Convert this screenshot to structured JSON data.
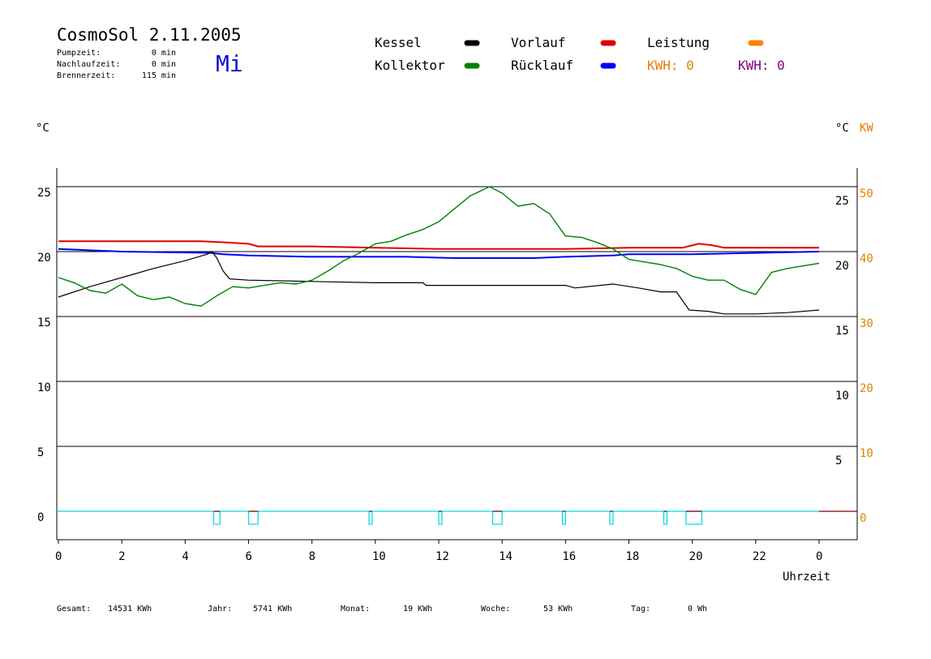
{
  "header": {
    "title": "CosmoSol 2.11.2005",
    "day": "Mi",
    "stats": [
      {
        "label": "Pumpzeit:",
        "value": "0 min"
      },
      {
        "label": "Nachlaufzeit:",
        "value": "0 min"
      },
      {
        "label": "Brennerzeit:",
        "value": "115 min"
      }
    ]
  },
  "legend": {
    "items": [
      {
        "label": "Kessel",
        "color": "#000000"
      },
      {
        "label": "Vorlauf",
        "color": "#e00000"
      },
      {
        "label": "Leistung",
        "color": "#ff8000"
      },
      {
        "label": "Kollektor",
        "color": "#008000"
      },
      {
        "label": "Rücklauf",
        "color": "#0000ff"
      }
    ],
    "kwh_orange": "KWH: 0",
    "kwh_purple": "KWH: 0",
    "kwh_orange_color": "#e08000",
    "kwh_purple_color": "#800080"
  },
  "axes": {
    "left_unit": "°C",
    "right_unit": "°C",
    "right_unit2": "KW",
    "xlabel": "Uhrzeit"
  },
  "footer": [
    {
      "label": "Gesamt:",
      "value": "14531 KWh"
    },
    {
      "label": "Jahr:",
      "value": "5741 KWh"
    },
    {
      "label": "Monat:",
      "value": "19 KWh"
    },
    {
      "label": "Woche:",
      "value": "53 KWh"
    },
    {
      "label": "Tag:",
      "value": "0 Wh"
    }
  ],
  "chart_data": {
    "type": "line",
    "title": "CosmoSol 2.11.2005",
    "xlabel": "Uhrzeit",
    "ylabel": "°C",
    "xlim": [
      0,
      24
    ],
    "ylim": [
      -2,
      26
    ],
    "grid": true,
    "x_ticks": [
      "0",
      "2",
      "4",
      "6",
      "8",
      "10",
      "12",
      "14",
      "16",
      "18",
      "20",
      "22",
      "0"
    ],
    "y_ticks_left": [
      "0",
      "5",
      "10",
      "15",
      "20",
      "25"
    ],
    "y_ticks_right_c": [
      "5",
      "10",
      "15",
      "20",
      "25"
    ],
    "y_ticks_right_kw": [
      "0",
      "10",
      "20",
      "30",
      "40",
      "50"
    ],
    "secondary_axis": {
      "label": "KW",
      "range": [
        0,
        50
      ]
    },
    "series": [
      {
        "name": "Vorlauf",
        "color": "#e00000",
        "points": [
          [
            0,
            20.8
          ],
          [
            4.5,
            20.8
          ],
          [
            5.3,
            20.7
          ],
          [
            6,
            20.6
          ],
          [
            6.3,
            20.4
          ],
          [
            8,
            20.4
          ],
          [
            10,
            20.3
          ],
          [
            12,
            20.2
          ],
          [
            14,
            20.2
          ],
          [
            16,
            20.2
          ],
          [
            18,
            20.3
          ],
          [
            19.7,
            20.3
          ],
          [
            20.2,
            20.6
          ],
          [
            20.6,
            20.5
          ],
          [
            21,
            20.3
          ],
          [
            24,
            20.3
          ]
        ]
      },
      {
        "name": "Rücklauf",
        "color": "#0000ff",
        "points": [
          [
            0,
            20.2
          ],
          [
            1,
            20.1
          ],
          [
            2,
            20.0
          ],
          [
            4.8,
            19.9
          ],
          [
            5.2,
            19.8
          ],
          [
            6,
            19.7
          ],
          [
            8,
            19.6
          ],
          [
            10,
            19.6
          ],
          [
            11,
            19.6
          ],
          [
            12.5,
            19.5
          ],
          [
            14,
            19.5
          ],
          [
            15,
            19.5
          ],
          [
            16,
            19.6
          ],
          [
            17.5,
            19.7
          ],
          [
            18,
            19.8
          ],
          [
            20,
            19.8
          ],
          [
            22,
            19.9
          ],
          [
            24,
            20.0
          ]
        ]
      },
      {
        "name": "Kessel",
        "color": "#000000",
        "points": [
          [
            0,
            16.5
          ],
          [
            1,
            17.3
          ],
          [
            2,
            18.0
          ],
          [
            3,
            18.7
          ],
          [
            4,
            19.3
          ],
          [
            4.7,
            19.8
          ],
          [
            4.85,
            20.0
          ],
          [
            5,
            19.5
          ],
          [
            5.2,
            18.5
          ],
          [
            5.4,
            17.9
          ],
          [
            6,
            17.8
          ],
          [
            8,
            17.7
          ],
          [
            10,
            17.6
          ],
          [
            11.5,
            17.6
          ],
          [
            11.6,
            17.4
          ],
          [
            16,
            17.4
          ],
          [
            16.3,
            17.2
          ],
          [
            17.5,
            17.5
          ],
          [
            18.3,
            17.2
          ],
          [
            19,
            16.9
          ],
          [
            19.5,
            16.9
          ],
          [
            19.9,
            15.5
          ],
          [
            20.5,
            15.4
          ],
          [
            21,
            15.2
          ],
          [
            22,
            15.2
          ],
          [
            23,
            15.3
          ],
          [
            24,
            15.5
          ]
        ]
      },
      {
        "name": "Kollektor",
        "color": "#008000",
        "points": [
          [
            0,
            18.0
          ],
          [
            0.5,
            17.6
          ],
          [
            1,
            17.0
          ],
          [
            1.5,
            16.8
          ],
          [
            2,
            17.5
          ],
          [
            2.5,
            16.6
          ],
          [
            3,
            16.3
          ],
          [
            3.5,
            16.5
          ],
          [
            4,
            16.0
          ],
          [
            4.5,
            15.8
          ],
          [
            5,
            16.6
          ],
          [
            5.5,
            17.3
          ],
          [
            6,
            17.2
          ],
          [
            6.5,
            17.4
          ],
          [
            7,
            17.6
          ],
          [
            7.5,
            17.5
          ],
          [
            8,
            17.8
          ],
          [
            8.5,
            18.5
          ],
          [
            9,
            19.3
          ],
          [
            9.5,
            19.9
          ],
          [
            10,
            20.6
          ],
          [
            10.5,
            20.8
          ],
          [
            11,
            21.3
          ],
          [
            11.5,
            21.7
          ],
          [
            12,
            22.3
          ],
          [
            12.5,
            23.3
          ],
          [
            13,
            24.3
          ],
          [
            13.6,
            25.0
          ],
          [
            14,
            24.5
          ],
          [
            14.5,
            23.5
          ],
          [
            15,
            23.7
          ],
          [
            15.5,
            22.9
          ],
          [
            16,
            21.2
          ],
          [
            16.5,
            21.1
          ],
          [
            17,
            20.7
          ],
          [
            17.5,
            20.2
          ],
          [
            18,
            19.4
          ],
          [
            18.5,
            19.2
          ],
          [
            19,
            19.0
          ],
          [
            19.5,
            18.7
          ],
          [
            20,
            18.1
          ],
          [
            20.5,
            17.8
          ],
          [
            21,
            17.8
          ],
          [
            21.5,
            17.1
          ],
          [
            22,
            16.7
          ],
          [
            22.5,
            18.4
          ],
          [
            23,
            18.7
          ],
          [
            23.5,
            18.9
          ],
          [
            24,
            19.1
          ]
        ]
      }
    ],
    "brenner_pulses": [
      [
        4.9,
        5.1
      ],
      [
        6.0,
        6.3
      ],
      [
        9.8,
        9.9
      ],
      [
        12.0,
        12.1
      ],
      [
        13.7,
        14.0
      ],
      [
        15.9,
        16.0
      ],
      [
        17.4,
        17.5
      ],
      [
        19.1,
        19.2
      ],
      [
        19.8,
        20.3
      ]
    ],
    "brenner_level": 0
  }
}
